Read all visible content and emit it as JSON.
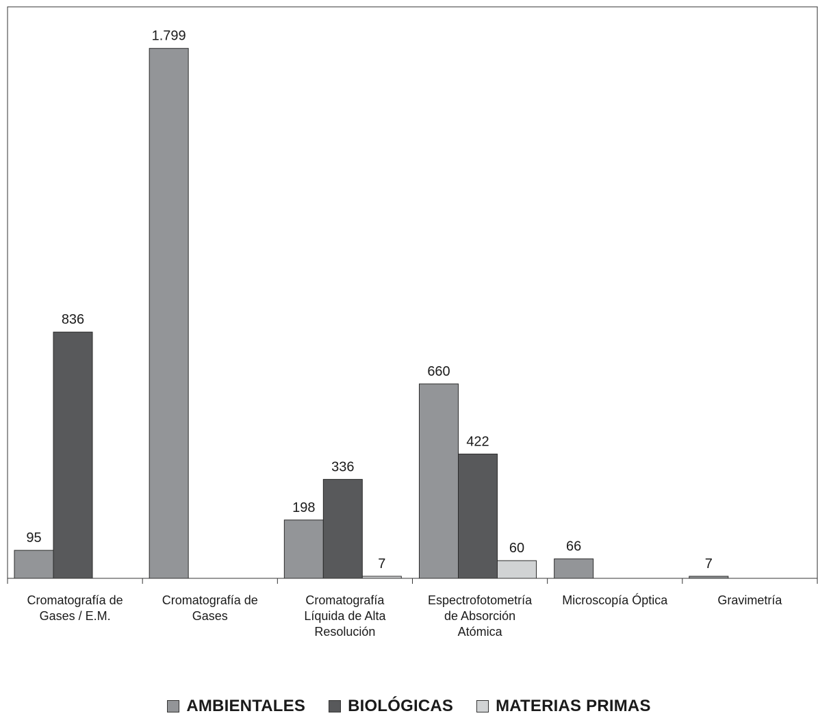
{
  "chart_data": {
    "type": "bar",
    "categories": [
      [
        "Cromatografía de",
        "Gases / E.M."
      ],
      [
        "Cromatografía de",
        "Gases"
      ],
      [
        "Cromatografía",
        "Líquida de Alta",
        "Resolución"
      ],
      [
        "Espectrofotometría",
        "de Absorción",
        "Atómica"
      ],
      [
        "Microscopía Óptica"
      ],
      [
        "Gravimetría"
      ]
    ],
    "series": [
      {
        "name": "AMBIENTALES",
        "color": "#939598",
        "values": [
          95,
          1799,
          198,
          660,
          66,
          7
        ],
        "labels": [
          "95",
          "1.799",
          "198",
          "660",
          "66",
          "7"
        ]
      },
      {
        "name": "BIOLÓGICAS",
        "color": "#58595b",
        "values": [
          836,
          null,
          336,
          422,
          null,
          null
        ],
        "labels": [
          "836",
          null,
          "336",
          "422",
          null,
          null
        ]
      },
      {
        "name": "MATERIAS PRIMAS",
        "color": "#d1d3d4",
        "values": [
          null,
          null,
          7,
          60,
          null,
          null
        ],
        "labels": [
          null,
          null,
          "7",
          "60",
          null,
          null
        ]
      }
    ],
    "ylim": [
      0,
      1940
    ],
    "grid": false,
    "legend_position": "bottom"
  }
}
